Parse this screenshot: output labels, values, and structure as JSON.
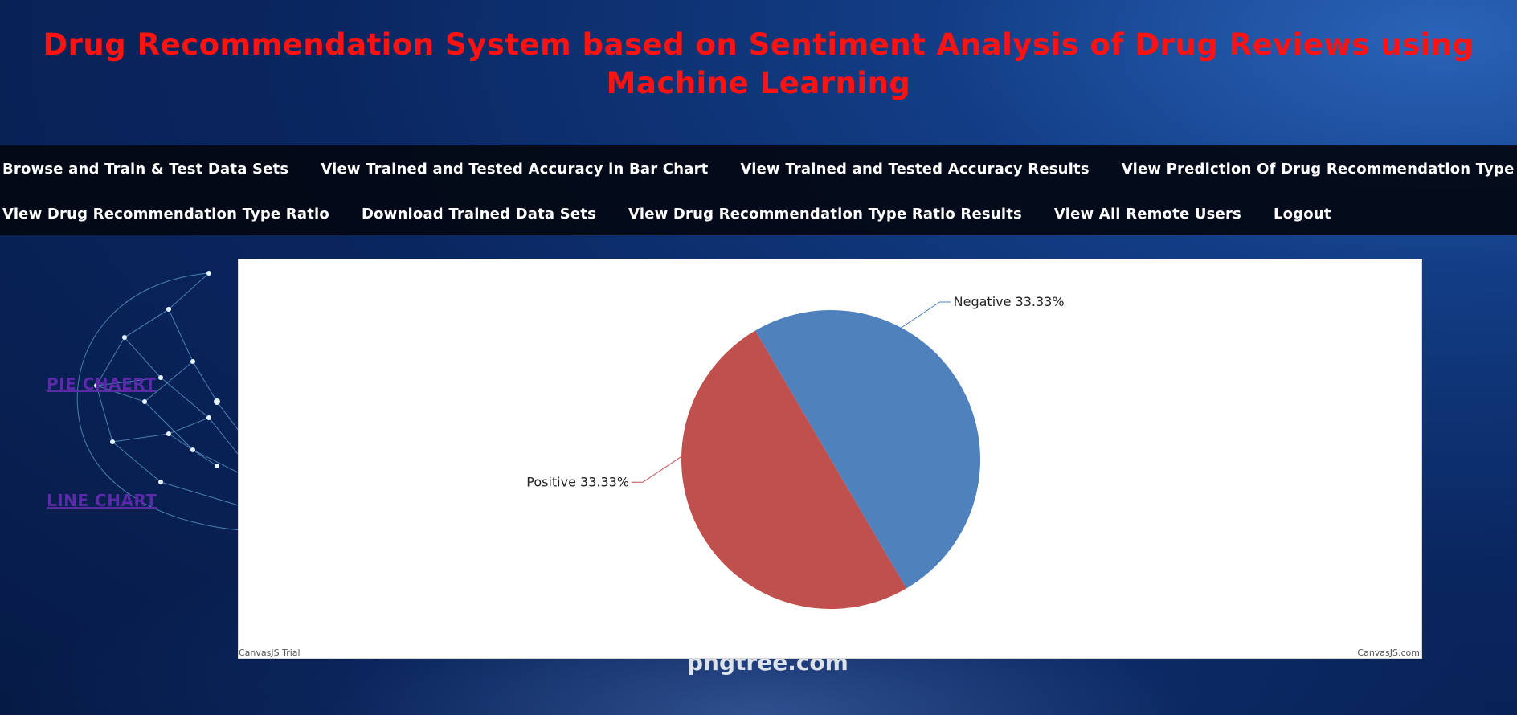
{
  "header": {
    "title": "Drug Recommendation System based on Sentiment Analysis of Drug Reviews using Machine Learning"
  },
  "nav": {
    "row1": [
      {
        "label": "Browse and Train & Test Data Sets"
      },
      {
        "label": "View Trained and Tested Accuracy in Bar Chart"
      },
      {
        "label": "View Trained and Tested Accuracy Results"
      },
      {
        "label": "View Prediction Of Drug Recommendation Type"
      }
    ],
    "row2": [
      {
        "label": "View Drug Recommendation Type Ratio"
      },
      {
        "label": "Download Trained Data Sets"
      },
      {
        "label": "View Drug Recommendation Type Ratio Results"
      },
      {
        "label": "View All Remote Users"
      },
      {
        "label": "Logout"
      }
    ]
  },
  "sidebar": {
    "pie_chart_link": "PIE CHAERT",
    "line_chart_link": "LINE CHART"
  },
  "background": {
    "watermark": "pngtree.com"
  },
  "chart": {
    "credit_left": "CanvasJS Trial",
    "credit_right": "CanvasJS.com"
  },
  "colors": {
    "title": "#ff1212",
    "nav_background": "#03080f",
    "link_visited": "#5b2aa8",
    "negative_slice": "#4f81bc",
    "positive_slice": "#c0504e"
  },
  "chart_data": {
    "type": "pie",
    "slices": [
      {
        "label": "Negative",
        "display": "33.33%",
        "value": 33.33,
        "color": "#4f81bc"
      },
      {
        "label": "Positive",
        "display": "33.33%",
        "value": 33.33,
        "color": "#c0504e"
      }
    ],
    "title": "",
    "legend": "none"
  }
}
